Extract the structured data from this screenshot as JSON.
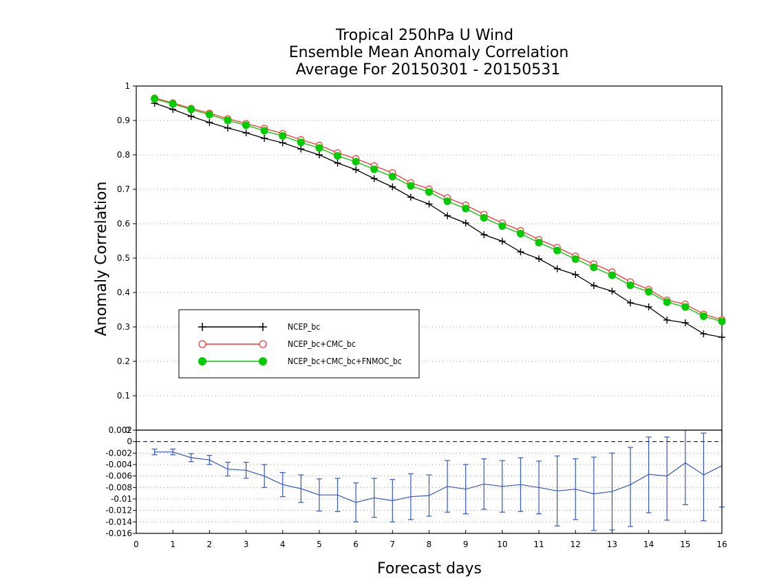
{
  "chart_data": [
    {
      "type": "line",
      "title": [
        "Tropical 250hPa U Wind",
        "Ensemble Mean Anomaly Correlation",
        "Average For 20150301 - 20150531"
      ],
      "xlabel": "Forecast days",
      "ylabel": "Anomaly Correlation",
      "xlim": [
        0,
        16
      ],
      "ylim": [
        0,
        1
      ],
      "x_ticks": [
        "0",
        "1",
        "2",
        "3",
        "4",
        "5",
        "6",
        "7",
        "8",
        "9",
        "10",
        "11",
        "12",
        "13",
        "14",
        "15",
        "16"
      ],
      "y_ticks": [
        "0",
        "0.1",
        "0.2",
        "0.3",
        "0.4",
        "0.5",
        "0.6",
        "0.7",
        "0.8",
        "0.9",
        "1"
      ],
      "grid": "horizontal dotted",
      "legend_position": "lower-left",
      "x": [
        0.5,
        1,
        1.5,
        2,
        2.5,
        3,
        3.5,
        4,
        4.5,
        5,
        5.5,
        6,
        6.5,
        7,
        7.5,
        8,
        8.5,
        9,
        9.5,
        10,
        10.5,
        11,
        11.5,
        12,
        12.5,
        13,
        13.5,
        14,
        14.5,
        15,
        15.5,
        16
      ],
      "series": [
        {
          "name": "NCEP_bc",
          "color": "#000000",
          "marker": "plus",
          "values": [
            0.95,
            0.932,
            0.912,
            0.894,
            0.878,
            0.864,
            0.848,
            0.835,
            0.817,
            0.8,
            0.776,
            0.757,
            0.731,
            0.707,
            0.677,
            0.657,
            0.623,
            0.602,
            0.568,
            0.549,
            0.518,
            0.498,
            0.469,
            0.452,
            0.42,
            0.404,
            0.37,
            0.358,
            0.32,
            0.312,
            0.28,
            0.27
          ]
        },
        {
          "name": "NCEP_bc+CMC_bc",
          "color": "#ff3333",
          "marker": "open-circle",
          "values": [
            0.965,
            0.951,
            0.935,
            0.921,
            0.905,
            0.891,
            0.877,
            0.862,
            0.844,
            0.828,
            0.806,
            0.789,
            0.768,
            0.748,
            0.719,
            0.701,
            0.675,
            0.654,
            0.627,
            0.602,
            0.58,
            0.554,
            0.531,
            0.506,
            0.483,
            0.46,
            0.431,
            0.409,
            0.378,
            0.366,
            0.337,
            0.321
          ]
        },
        {
          "name": "NCEP_bc+CMC_bc+FNMOC_bc",
          "color": "#00cc00",
          "marker": "filled-circle",
          "values": [
            0.963,
            0.948,
            0.932,
            0.917,
            0.9,
            0.886,
            0.87,
            0.855,
            0.836,
            0.82,
            0.797,
            0.78,
            0.758,
            0.737,
            0.71,
            0.692,
            0.665,
            0.644,
            0.617,
            0.593,
            0.571,
            0.545,
            0.522,
            0.497,
            0.473,
            0.45,
            0.421,
            0.402,
            0.372,
            0.358,
            0.331,
            0.316
          ]
        }
      ]
    },
    {
      "type": "line",
      "xlim": [
        0,
        16
      ],
      "ylim": [
        -0.016,
        0.002
      ],
      "y_ticks": [
        "0.002",
        "0",
        "-0.002",
        "-0.004",
        "-0.006",
        "-0.008",
        "-0.01",
        "-0.012",
        "-0.014",
        "-0.016"
      ],
      "grid": "horizontal dotted",
      "x": [
        0.5,
        1,
        1.5,
        2,
        2.5,
        3,
        3.5,
        4,
        4.5,
        5,
        5.5,
        6,
        6.5,
        7,
        7.5,
        8,
        8.5,
        9,
        9.5,
        10,
        10.5,
        11,
        11.5,
        12,
        12.5,
        13,
        13.5,
        14,
        14.5,
        15,
        15.5,
        16
      ],
      "series": [
        {
          "color": "#3355cc",
          "marker": "error-bar",
          "values": [
            -0.0018,
            -0.0018,
            -0.0028,
            -0.0032,
            -0.0048,
            -0.005,
            -0.006,
            -0.0075,
            -0.0082,
            -0.0093,
            -0.0093,
            -0.0106,
            -0.0098,
            -0.0103,
            -0.0096,
            -0.0094,
            -0.0078,
            -0.0083,
            -0.0074,
            -0.0078,
            -0.0075,
            -0.008,
            -0.0086,
            -0.0083,
            -0.0091,
            -0.0087,
            -0.0075,
            -0.0057,
            -0.006,
            -0.0037,
            -0.0058,
            -0.0042
          ],
          "error_low": [
            -0.0023,
            -0.0023,
            -0.0035,
            -0.004,
            -0.006,
            -0.0064,
            -0.008,
            -0.0096,
            -0.0106,
            -0.0121,
            -0.0122,
            -0.014,
            -0.0132,
            -0.014,
            -0.0136,
            -0.013,
            -0.0123,
            -0.0126,
            -0.0118,
            -0.0123,
            -0.0122,
            -0.0126,
            -0.0147,
            -0.0136,
            -0.0155,
            -0.0154,
            -0.0148,
            -0.0124,
            -0.0137,
            -0.011,
            -0.0138,
            -0.0114
          ],
          "error_high": [
            -0.0013,
            -0.0013,
            -0.0021,
            -0.0024,
            -0.0036,
            -0.0036,
            -0.004,
            -0.0054,
            -0.0058,
            -0.0065,
            -0.0064,
            -0.0072,
            -0.0064,
            -0.0066,
            -0.0056,
            -0.0058,
            -0.0033,
            -0.004,
            -0.003,
            -0.0033,
            -0.0028,
            -0.0034,
            -0.0025,
            -0.003,
            -0.0027,
            -0.002,
            -0.001,
            0.0008,
            0.0008,
            0.0028,
            0.0015,
            0.003
          ]
        }
      ]
    }
  ]
}
